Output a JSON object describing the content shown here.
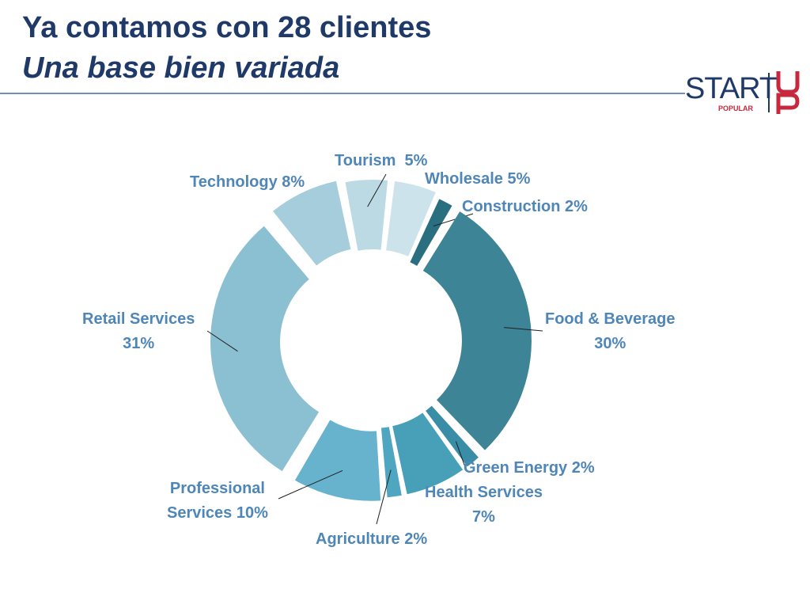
{
  "header": {
    "title": "Ya contamos con 28 clientes",
    "subtitle": "Una base bien variada"
  },
  "logo": {
    "wordmark": "START",
    "sub": "POPULAR",
    "mark": "UP",
    "color": "#c7283d"
  },
  "chart_data": {
    "type": "pie",
    "variant": "donut",
    "slices": [
      {
        "name": "Construction",
        "value": 2,
        "label": "Construction 2%",
        "color": "#2a6f80"
      },
      {
        "name": "Food & Beverage",
        "value": 30,
        "label": "Food & Beverage\n30%",
        "color": "#3d8496"
      },
      {
        "name": "Green Energy",
        "value": 2,
        "label": "Green Energy 2%",
        "color": "#3a8da6"
      },
      {
        "name": "Health Services",
        "value": 7,
        "label": "Health Services\n7%",
        "color": "#489fb8"
      },
      {
        "name": "Agriculture",
        "value": 2,
        "label": "Agriculture 2%",
        "color": "#4ea6c0"
      },
      {
        "name": "Professional Services",
        "value": 10,
        "label": "Professional\nServices 10%",
        "color": "#67b2cc"
      },
      {
        "name": "Retail Services",
        "value": 31,
        "label": "Retail Services\n31%",
        "color": "#8bc0d2"
      },
      {
        "name": "Technology",
        "value": 8,
        "label": "Technology 8%",
        "color": "#a5cddb"
      },
      {
        "name": "Tourism",
        "value": 5,
        "label": "Tourism  5%",
        "color": "#bcdae4"
      },
      {
        "name": "Wholesale",
        "value": 5,
        "label": "Wholesale 5%",
        "color": "#cde3eb"
      }
    ]
  }
}
